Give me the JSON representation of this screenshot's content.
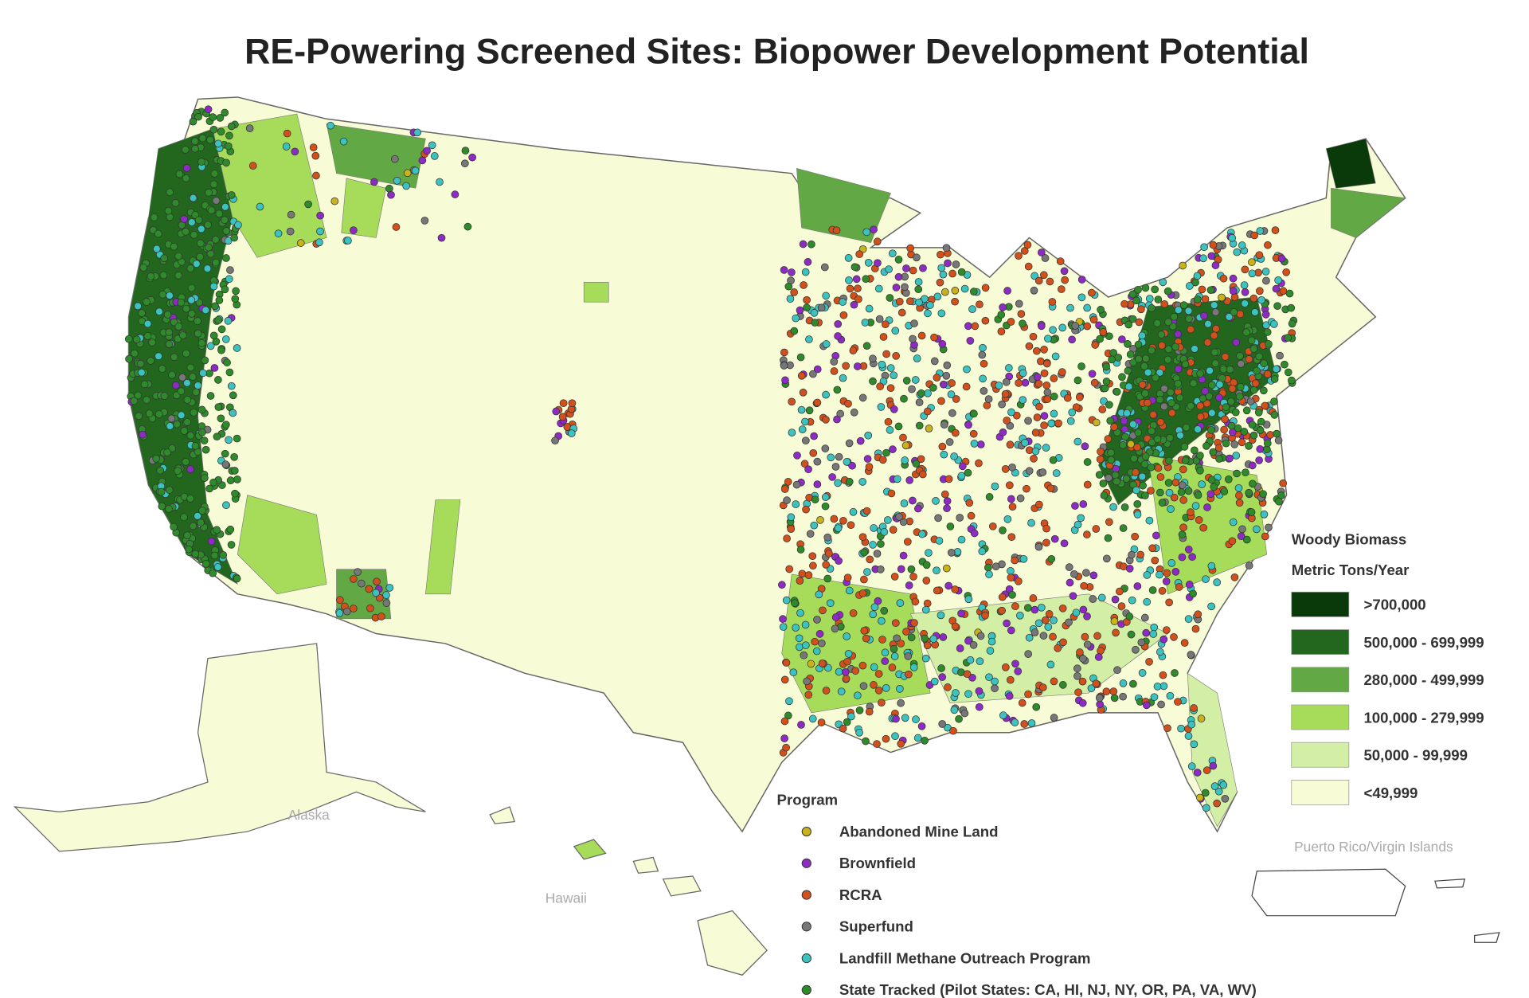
{
  "title": "RE-Powering Screened Sites: Biopower Development Potential",
  "biomass_legend": {
    "title_lines": [
      "Woody Biomass",
      "Metric Tons/Year"
    ],
    "items": [
      {
        "label": ">700,000",
        "color": "#0a3a0a"
      },
      {
        "label": "500,000 - 699,999",
        "color": "#23671f"
      },
      {
        "label": "280,000 - 499,999",
        "color": "#62a844"
      },
      {
        "label": "100,000 - 279,999",
        "color": "#a6dc5a"
      },
      {
        "label": "50,000 - 99,999",
        "color": "#d3efa6"
      },
      {
        "label": "<49,999",
        "color": "#f7fbd6"
      }
    ]
  },
  "program_legend": {
    "title": "Program",
    "items": [
      {
        "label": "Abandoned Mine Land",
        "color": "#c9b21c"
      },
      {
        "label": "Brownfield",
        "color": "#8e2bc4"
      },
      {
        "label": "RCRA",
        "color": "#d2501c"
      },
      {
        "label": "Superfund",
        "color": "#777777"
      },
      {
        "label": "Landfill Methane Outreach Program",
        "color": "#3cc3c0"
      },
      {
        "label": "State Tracked (Pilot States: CA, HI, NJ, NY, OR, PA, VA, WV)",
        "color": "#2e8a2a"
      }
    ]
  },
  "region_labels": {
    "alaska": "Alaska",
    "hawaii": "Hawaii",
    "puerto_rico": "Puerto Rico/Virgin Islands"
  }
}
